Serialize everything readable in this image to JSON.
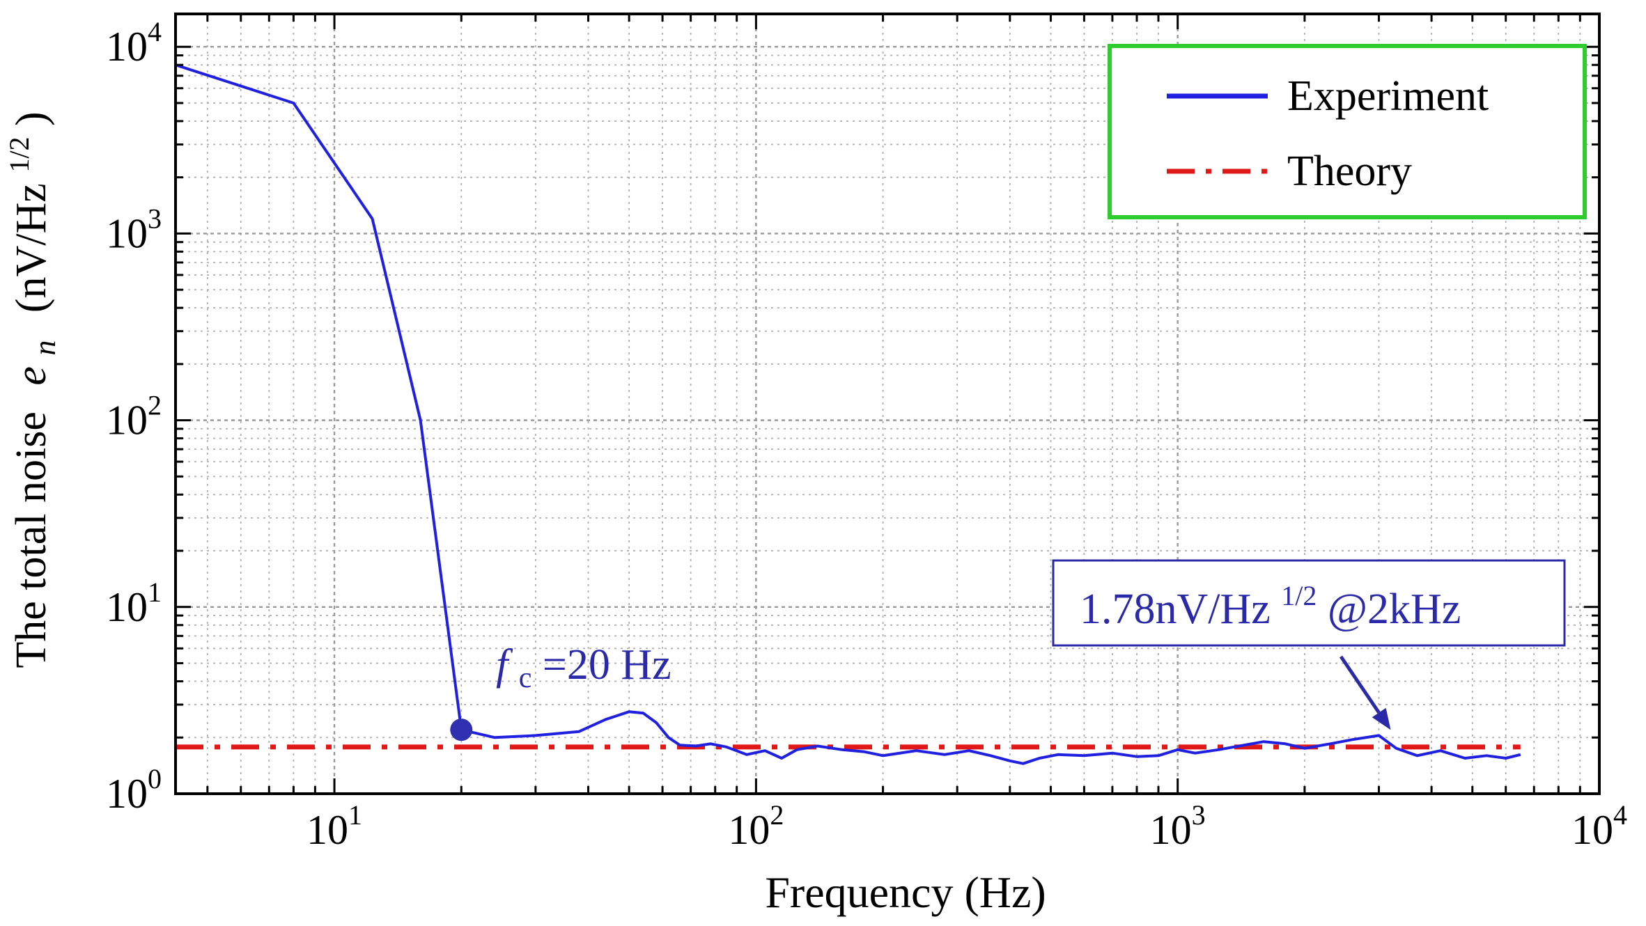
{
  "chart_data": {
    "type": "line",
    "xscale": "log",
    "yscale": "log",
    "xlabel": "Frequency (Hz)",
    "ylabel": {
      "prefix": "The total noise",
      "symbol_main": "e",
      "symbol_sub": "n",
      "unit_open": "(nV/Hz",
      "unit_sup": "1/2",
      "unit_close": ")"
    },
    "xlim": [
      4.2,
      10000
    ],
    "ylim": [
      1,
      15000
    ],
    "grid": true,
    "x_ticks": [
      {
        "value": 10,
        "base": "10",
        "exp": "1"
      },
      {
        "value": 100,
        "base": "10",
        "exp": "2"
      },
      {
        "value": 1000,
        "base": "10",
        "exp": "3"
      },
      {
        "value": 10000,
        "base": "10",
        "exp": "4"
      }
    ],
    "y_ticks": [
      {
        "value": 1,
        "base": "10",
        "exp": "0"
      },
      {
        "value": 10,
        "base": "10",
        "exp": "1"
      },
      {
        "value": 100,
        "base": "10",
        "exp": "2"
      },
      {
        "value": 1000,
        "base": "10",
        "exp": "3"
      },
      {
        "value": 10000,
        "base": "10",
        "exp": "4"
      }
    ],
    "legend": {
      "position": "top-right",
      "border_color": "#2ecc2e",
      "entries": [
        {
          "label": "Experiment",
          "series": "experiment"
        },
        {
          "label": "Theory",
          "series": "theory"
        }
      ]
    },
    "series": [
      {
        "name": "experiment",
        "color": "#2020e0",
        "style": "solid",
        "x": [
          4.2,
          8.0,
          12.3,
          16.0,
          20.0,
          24.0,
          30.0,
          38.0,
          44.0,
          50.0,
          54.0,
          58.0,
          62.0,
          66.0,
          72.0,
          78.0,
          85.0,
          95.0,
          105.0,
          115.0,
          125.0,
          140.0,
          160.0,
          180.0,
          200.0,
          240.0,
          280.0,
          320.0,
          360.0,
          400.0,
          430.0,
          470.0,
          520.0,
          600.0,
          700.0,
          800.0,
          900.0,
          1000.0,
          1100.0,
          1250.0,
          1400.0,
          1600.0,
          1800.0,
          2000.0,
          2300.0,
          2600.0,
          3000.0,
          3300.0,
          3700.0,
          4200.0,
          4800.0,
          5400.0,
          6000.0,
          6500.0
        ],
        "y": [
          8000,
          5000,
          1200,
          100,
          2.2,
          2.0,
          2.05,
          2.15,
          2.5,
          2.75,
          2.7,
          2.4,
          2.0,
          1.82,
          1.8,
          1.85,
          1.78,
          1.62,
          1.7,
          1.55,
          1.72,
          1.8,
          1.72,
          1.68,
          1.6,
          1.7,
          1.62,
          1.7,
          1.6,
          1.5,
          1.45,
          1.55,
          1.62,
          1.6,
          1.65,
          1.58,
          1.6,
          1.72,
          1.65,
          1.72,
          1.8,
          1.9,
          1.85,
          1.75,
          1.85,
          1.95,
          2.05,
          1.75,
          1.6,
          1.7,
          1.55,
          1.6,
          1.55,
          1.62
        ]
      },
      {
        "name": "theory",
        "color": "#e01818",
        "style": "dash-dot",
        "x": [
          4.2,
          6500
        ],
        "y": [
          1.78,
          1.78
        ]
      }
    ],
    "marker": {
      "x": 20,
      "y": 2.2,
      "color": "#3030b0"
    },
    "annotations": {
      "corner": {
        "symbol": "f",
        "sub": "c",
        "rest": "=20 Hz",
        "x": 20,
        "y": 2.2
      },
      "noise_box": {
        "main": "1.78nV/Hz",
        "sup": "1/2",
        "rest": "@2kHz",
        "arrow_target_x": 3200,
        "arrow_target_y": 2.05
      },
      "text_color": "#2a2aa8"
    }
  }
}
